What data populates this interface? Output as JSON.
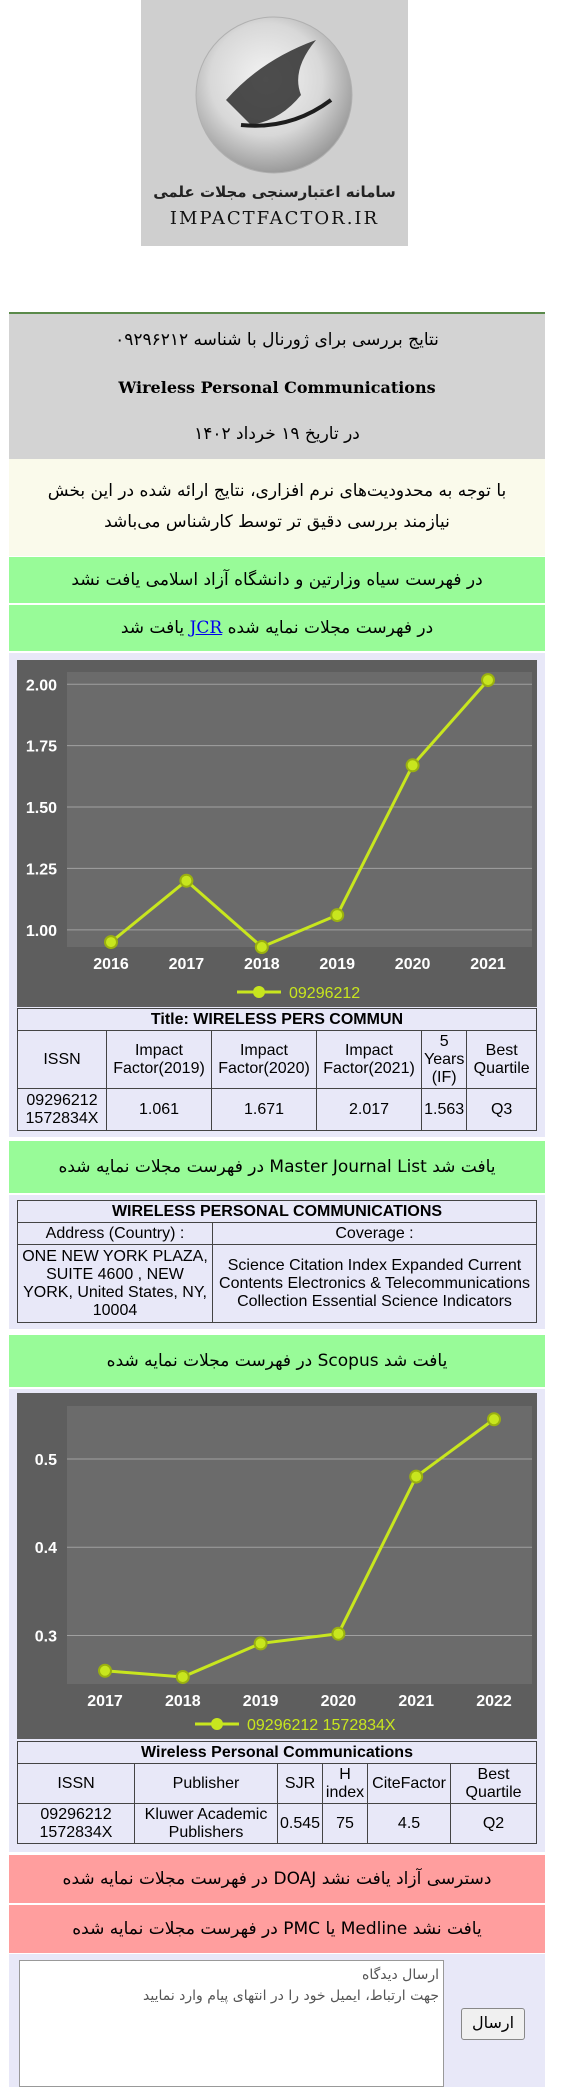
{
  "logo": {
    "circle_text_top": "IMPACTFACTOR.IR",
    "circle_text_bottom": "سامانه اعتبارسنجی علمی",
    "tagline_fa": "سامانه اعتبارسنجی مجلات علمی",
    "wordmark": "IMPACTFACTOR.IR"
  },
  "header": {
    "title": "نتایج بررسی برای ژورنال با شناسه ۰۹۲۹۶۲۱۲",
    "journal_name": "Wireless Personal Communications",
    "date": "در تاریخ ۱۹ خرداد ۱۴۰۲"
  },
  "warning": {
    "line1": "با توجه به محدودیت‌های نرم افزاری، نتایج ارائه شده در این بخش",
    "line2": "نیازمند بررسی دقیق تر توسط کارشناس می‌باشد"
  },
  "status": {
    "ministry": "در فهرست سیاه وزارتین و دانشگاه آزاد اسلامی یافت نشد",
    "jcr_pre": "در فهرست مجلات نمایه شده",
    "jcr_link": "JCR",
    "jcr_post": "یافت شد",
    "mjl": "در فهرست مجلات نمایه شده Master Journal List یافت شد",
    "scopus": "در فهرست مجلات نمایه شده Scopus یافت شد",
    "doaj": "در فهرست مجلات نمایه شده DOAJ دسترسی آزاد یافت نشد",
    "pmc": "در فهرست مجلات نمایه شده PMC یا Medline یافت نشد"
  },
  "chart_data": [
    {
      "type": "line",
      "x": [
        "2016",
        "2017",
        "2018",
        "2019",
        "2020",
        "2021"
      ],
      "series": [
        {
          "name": "09296212",
          "values": [
            0.95,
            1.2,
            0.93,
            1.06,
            1.67,
            2.017
          ]
        }
      ],
      "y_ticks": [
        "1.00",
        "1.25",
        "1.50",
        "1.75",
        "2.00"
      ],
      "ylim": [
        0.93,
        2.05
      ],
      "grid": true,
      "legend": "bottom",
      "colors": {
        "line": "#c8e61e",
        "plot_bg": "#6b6b6b",
        "outer_bg": "#5e5e5e",
        "grid": "#a0a0a0"
      }
    },
    {
      "type": "line",
      "x": [
        "2017",
        "2018",
        "2019",
        "2020",
        "2021",
        "2022"
      ],
      "series": [
        {
          "name": "09296212 1572834X",
          "values": [
            0.26,
            0.253,
            0.291,
            0.302,
            0.48,
            0.545
          ]
        }
      ],
      "y_ticks": [
        "0.3",
        "0.4",
        "0.5"
      ],
      "ylim": [
        0.245,
        0.56
      ],
      "grid": true,
      "legend": "bottom",
      "colors": {
        "line": "#c8e61e",
        "plot_bg": "#6b6b6b",
        "outer_bg": "#5e5e5e",
        "grid": "#a0a0a0"
      }
    }
  ],
  "jcr_table": {
    "title": "Title: WIRELESS PERS COMMUN",
    "headers": [
      "ISSN",
      "Impact Factor(2019)",
      "Impact Factor(2020)",
      "Impact Factor(2021)",
      "5 Years (IF)",
      "Best Quartile"
    ],
    "row": [
      "09296212 1572834X",
      "1.061",
      "1.671",
      "2.017",
      "1.563",
      "Q3"
    ]
  },
  "mjl_table": {
    "title": "WIRELESS PERSONAL COMMUNICATIONS",
    "headers": [
      "Address (Country) :",
      "Coverage :"
    ],
    "row": [
      "ONE NEW YORK PLAZA, SUITE 4600 , NEW YORK, United States, NY, 10004",
      "Science Citation Index Expanded Current Contents Electronics & Telecommunications Collection Essential Science Indicators"
    ]
  },
  "scopus_table": {
    "title": "Wireless Personal Communications",
    "headers": [
      "ISSN",
      "Publisher",
      "SJR",
      "H index",
      "CiteFactor",
      "Best Quartile"
    ],
    "row": [
      "09296212 1572834X",
      "Kluwer Academic Publishers",
      "0.545",
      "75",
      "4.5",
      "Q2"
    ]
  },
  "comment": {
    "placeholder_line1": "ارسال دیدگاه",
    "placeholder_line2": "جهت ارتباط، ایمیل خود را در انتهای پیام وارد نمایید",
    "send_label": "ارسال"
  }
}
